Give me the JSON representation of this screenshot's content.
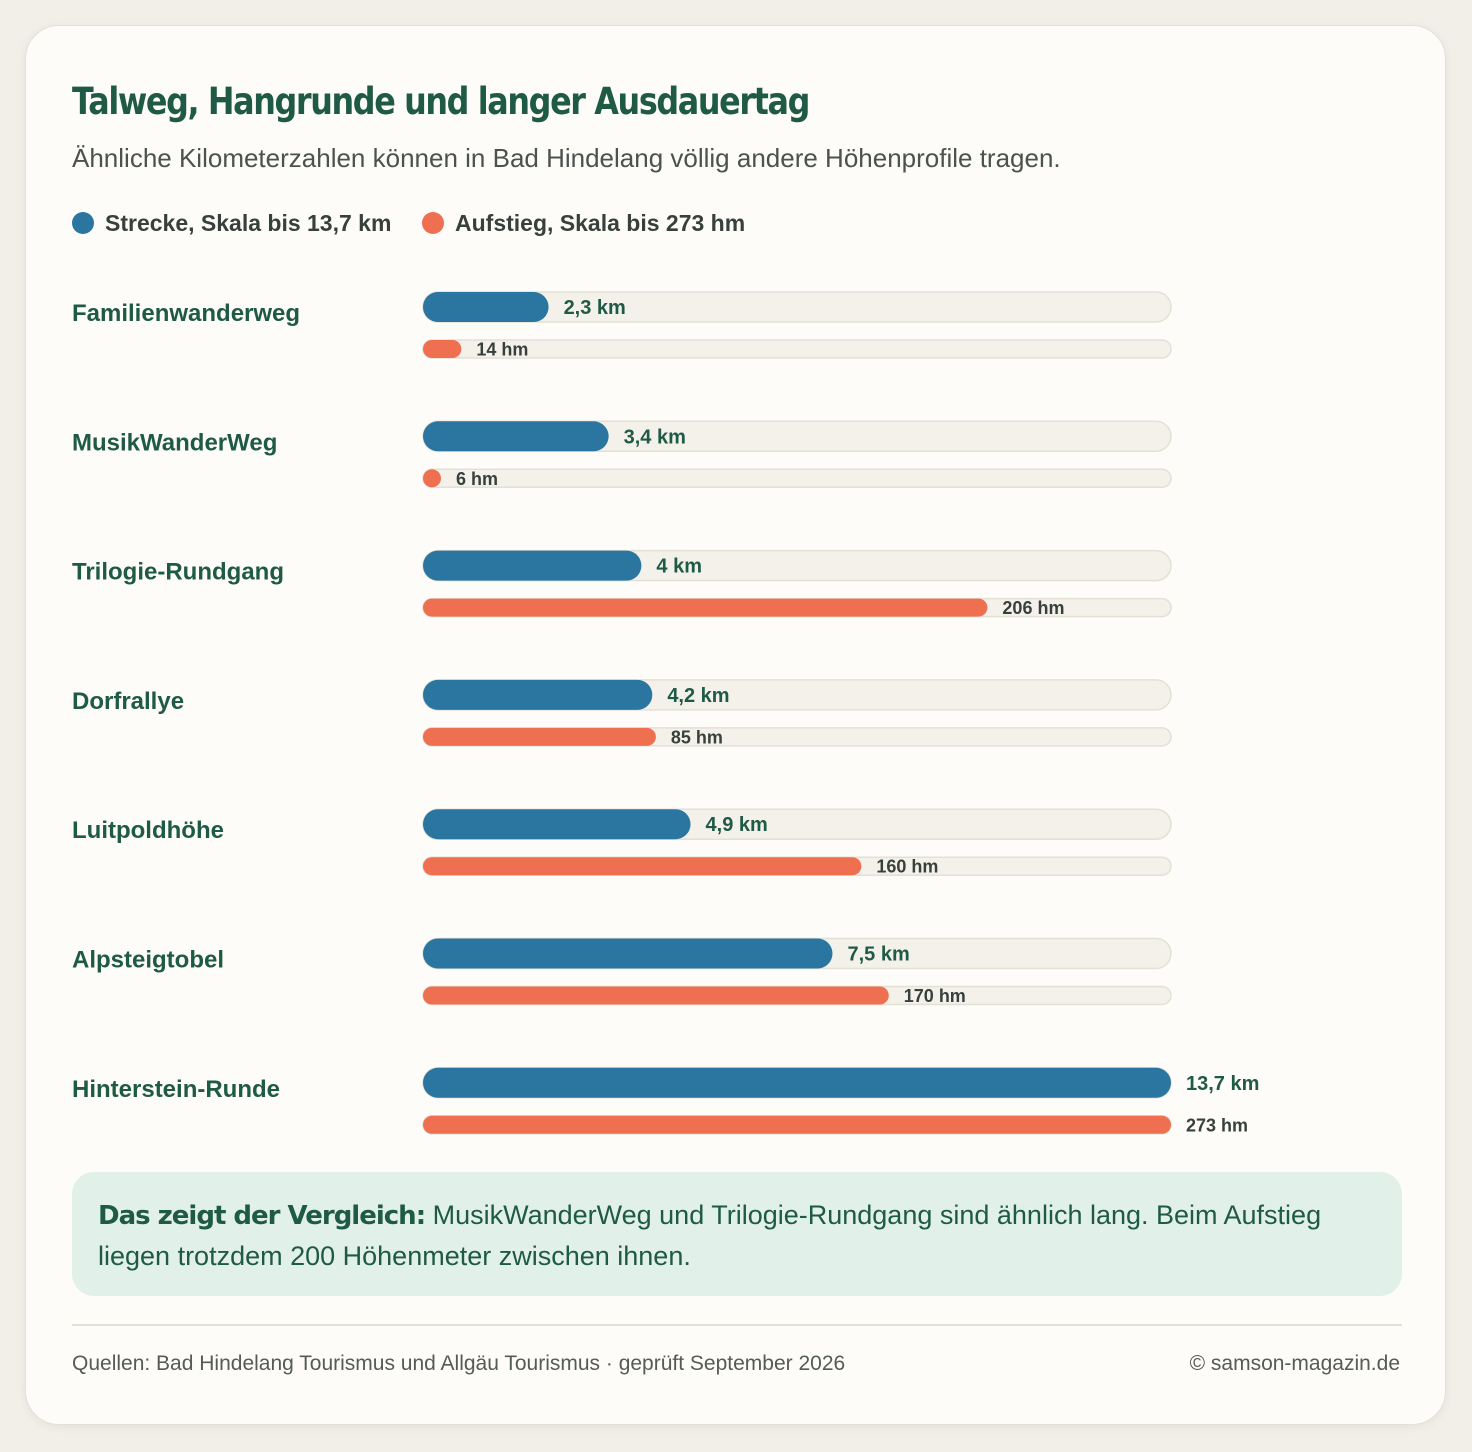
{
  "header": {
    "title": "Talweg, Hangrunde und langer Ausdauertag",
    "subtitle": "Ähnliche Kilometerzahlen können in Bad Hindelang völlig andere Höhenprofile tragen."
  },
  "legend": {
    "distance": "Strecke, Skala bis 13,7 km",
    "ascent": "Aufstieg, Skala bis 273 hm"
  },
  "colors": {
    "distance": "#2b76a0",
    "ascent": "#ee7051",
    "track": "#f3f1ea",
    "label": "#1f5a46"
  },
  "chart_data": {
    "type": "bar",
    "orientation": "horizontal",
    "categories": [
      "Familienwanderweg",
      "MusikWanderWeg",
      "Trilogie-Rundgang",
      "Dorfrallye",
      "Luitpoldhöhe",
      "Alpsteigtobel",
      "Hinterstein-Runde"
    ],
    "series": [
      {
        "name": "Strecke",
        "unit": "km",
        "max": 13.7,
        "values": [
          2.3,
          3.4,
          4,
          4.2,
          4.9,
          7.5,
          13.7
        ],
        "labels": [
          "2,3 km",
          "3,4 km",
          "4 km",
          "4,2 km",
          "4,9 km",
          "7,5 km",
          "13,7 km"
        ]
      },
      {
        "name": "Aufstieg",
        "unit": "hm",
        "max": 273,
        "values": [
          14,
          6,
          206,
          85,
          160,
          170,
          273
        ],
        "labels": [
          "14 hm",
          "6 hm",
          "206 hm",
          "85 hm",
          "160 hm",
          "170 hm",
          "273 hm"
        ]
      }
    ]
  },
  "note": {
    "lead": "Das zeigt der Vergleich:",
    "text": " MusikWanderWeg und Trilogie-Rundgang sind ähnlich lang. Beim Aufstieg liegen trotzdem 200 Höhenmeter zwischen ihnen."
  },
  "footer": {
    "sources": "Quellen: Bad Hindelang Tourismus und Allgäu Tourismus · geprüft September 2026",
    "copyright": "© samson-magazin.de"
  }
}
